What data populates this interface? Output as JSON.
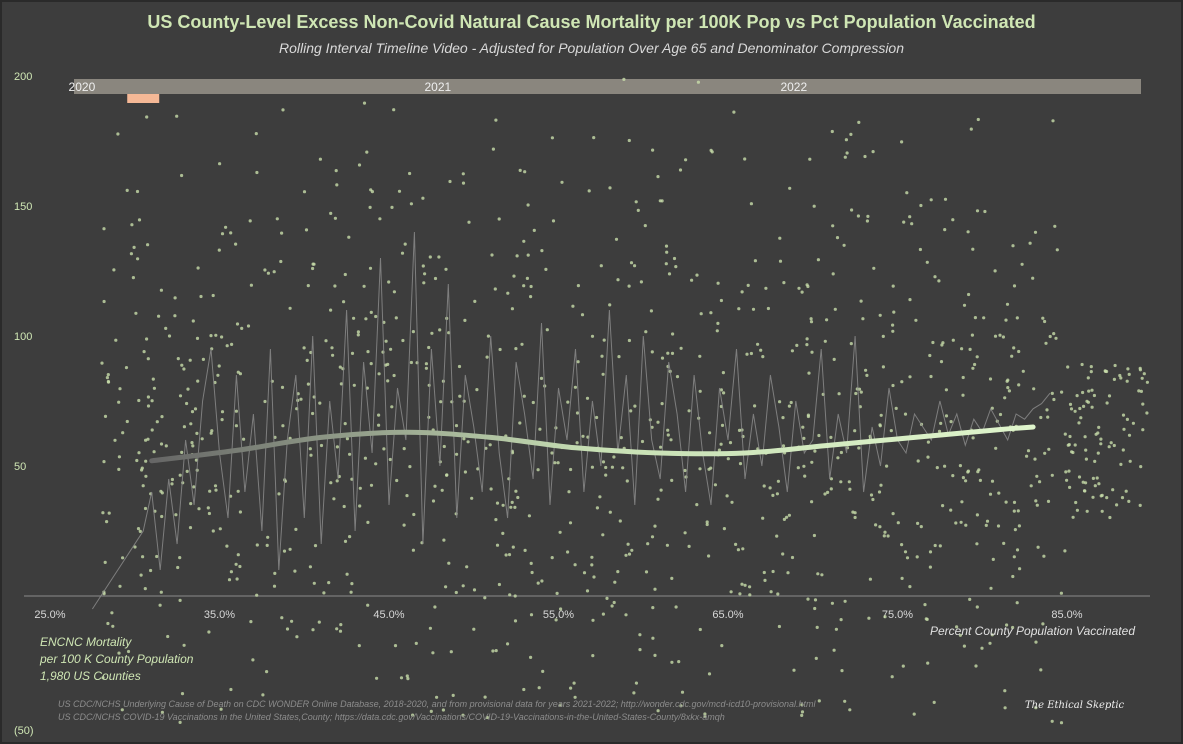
{
  "chart_data": {
    "type": "scatter",
    "title": "US County-Level Excess Non-Covid Natural Cause Mortality per 100K Pop vs Pct Population Vaccinated",
    "subtitle": "Rolling Interval Timeline Video - Adjusted for Population Over Age 65 and Denominator Compression",
    "xlabel": "Percent County Population Vaccinated",
    "ylabel_lines": [
      "ENCNC Mortality",
      "per 100 K County Population",
      "1,980 US Counties"
    ],
    "xlim": [
      24,
      90
    ],
    "ylim": [
      -50,
      200
    ],
    "x_ticks": [
      "25.0%",
      "35.0%",
      "45.0%",
      "55.0%",
      "65.0%",
      "75.0%",
      "85.0%"
    ],
    "x_tick_values": [
      25,
      35,
      45,
      55,
      65,
      75,
      85
    ],
    "y_ticks": [
      "200",
      "150",
      "100",
      "50",
      "(50)"
    ],
    "y_tick_values": [
      200,
      150,
      100,
      50,
      -50
    ],
    "timeline": {
      "labels": [
        "2020",
        "2021",
        "2022"
      ],
      "label_positions_x": [
        27,
        48,
        69
      ],
      "marker_x": 30.5
    },
    "trend": {
      "x": [
        31,
        36,
        41,
        46,
        51,
        56,
        61,
        66,
        71,
        76,
        81,
        83
      ],
      "y": [
        52,
        56,
        61,
        63,
        61,
        57,
        55,
        55,
        58,
        61,
        64,
        65
      ]
    },
    "noisy_line": {
      "x": [
        27.5,
        28.5,
        29.5,
        30.5,
        31,
        31.5,
        32,
        32.5,
        33,
        33.5,
        34,
        34.5,
        35,
        35.5,
        36,
        36.5,
        37,
        37.5,
        38,
        38.5,
        39,
        39.5,
        40,
        40.5,
        41,
        41.5,
        42,
        42.5,
        43,
        43.5,
        44,
        44.5,
        45,
        45.5,
        46,
        46.5,
        47,
        47.5,
        48,
        48.5,
        49,
        49.5,
        50,
        50.5,
        51,
        51.5,
        52,
        52.5,
        53,
        53.5,
        54,
        54.5,
        55,
        55.5,
        56,
        56.5,
        57,
        57.5,
        58,
        58.5,
        59,
        59.5,
        60,
        60.5,
        61,
        61.5,
        62,
        62.5,
        63,
        63.5,
        64,
        64.5,
        65,
        65.5,
        66,
        66.5,
        67,
        67.5,
        68,
        68.5,
        69,
        69.5,
        70,
        70.5,
        71,
        71.5,
        72,
        72.5,
        73,
        73.5,
        74,
        74.5,
        75,
        75.5,
        76,
        76.5,
        77,
        77.5,
        78,
        78.5,
        79,
        79.5,
        80,
        80.5,
        81,
        81.5,
        82,
        82.5,
        83,
        83.5,
        84
      ],
      "y": [
        -5,
        5,
        15,
        25,
        40,
        10,
        45,
        20,
        60,
        35,
        75,
        95,
        55,
        30,
        85,
        40,
        70,
        25,
        95,
        10,
        60,
        85,
        30,
        100,
        20,
        75,
        45,
        110,
        25,
        90,
        55,
        130,
        35,
        80,
        60,
        140,
        20,
        95,
        50,
        120,
        30,
        85,
        65,
        40,
        100,
        55,
        30,
        90,
        70,
        45,
        105,
        35,
        80,
        60,
        95,
        40,
        75,
        50,
        110,
        55,
        85,
        35,
        100,
        60,
        45,
        90,
        70,
        40,
        85,
        55,
        35,
        80,
        60,
        95,
        45,
        70,
        50,
        85,
        65,
        40,
        75,
        55,
        60,
        95,
        45,
        70,
        55,
        100,
        40,
        65,
        50,
        80,
        60,
        55,
        70,
        65,
        60,
        75,
        62,
        70,
        58,
        68,
        63,
        72,
        66,
        60,
        70,
        68,
        72,
        74,
        78
      ]
    },
    "legend": "none",
    "grid": "off",
    "colors": {
      "background": "#3d3d3d",
      "points": "#c8ddaa",
      "trend_start": "#666666",
      "trend_end": "#dff5cc",
      "noise_line": "#8a8a8a",
      "title": "#cfe6b4",
      "timeline_bar": "#8a867e",
      "timeline_marker": "#f5b896"
    }
  },
  "sources": [
    "US CDC/NCHS Underlying Cause of Death on CDC WONDER Online Database, 2018-2020, and from provisional data for years 2021-2022; http://wonder.cdc.gov/mcd-icd10-provisional.html",
    "US CDC/NCHS COVID-19 Vaccinations in the United States,County; https://data.cdc.gov/Vaccinations/COVID-19-Vaccinations-in-the-United-States-County/8xkx-amqh"
  ],
  "brand": "The Ethical Skeptic"
}
